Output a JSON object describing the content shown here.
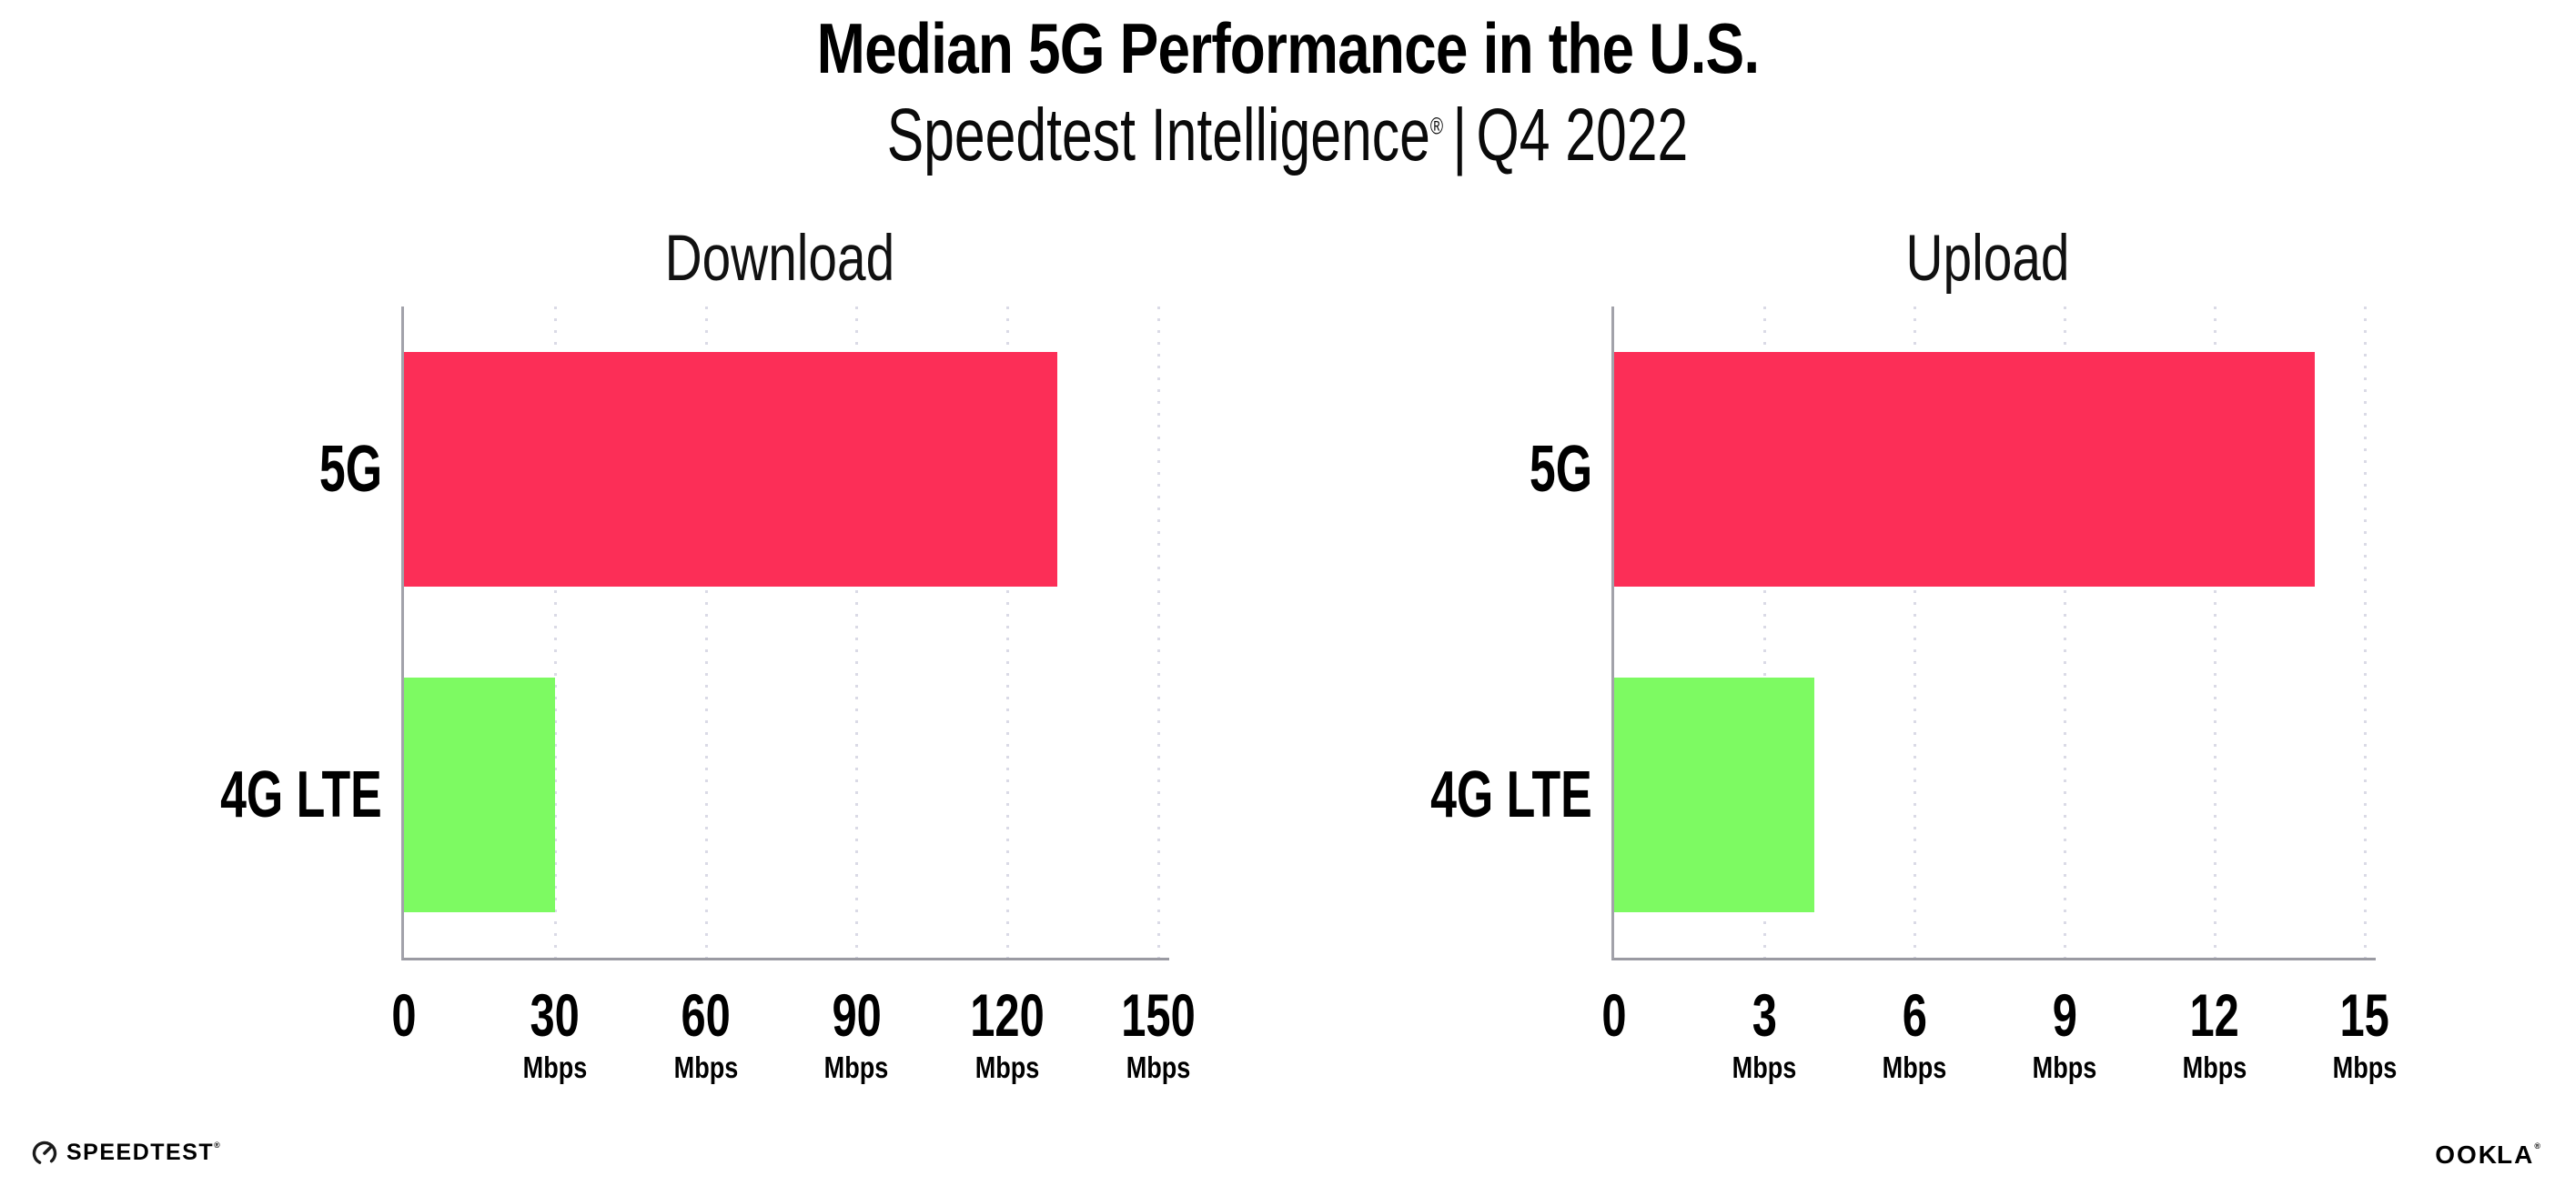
{
  "header": {
    "title": "Median 5G Performance in the U.S.",
    "subtitle": {
      "brand": "Speedtest Intelligence",
      "reg_mark": "®",
      "separator": "|",
      "period": "Q4 2022"
    }
  },
  "chart_data": [
    {
      "type": "bar",
      "orientation": "horizontal",
      "title": "Download",
      "categories": [
        "5G",
        "4G LTE"
      ],
      "values": [
        130,
        30
      ],
      "unit": "Mbps",
      "xlabel": "",
      "ylabel": "",
      "xlim": [
        0,
        150
      ],
      "xticks": [
        0,
        30,
        60,
        90,
        120,
        150
      ],
      "bar_colors": [
        "#fc2e57",
        "#7dfa62"
      ],
      "grid": "vertical-dotted",
      "legend": "none"
    },
    {
      "type": "bar",
      "orientation": "horizontal",
      "title": "Upload",
      "categories": [
        "5G",
        "4G LTE"
      ],
      "values": [
        14,
        4
      ],
      "unit": "Mbps",
      "xlabel": "",
      "ylabel": "",
      "xlim": [
        0,
        15
      ],
      "xticks": [
        0,
        3,
        6,
        9,
        12,
        15
      ],
      "bar_colors": [
        "#fc2e57",
        "#7dfa62"
      ],
      "grid": "vertical-dotted",
      "legend": "none"
    }
  ],
  "footer": {
    "speedtest_wordmark": "SPEEDTEST",
    "speedtest_reg": "®",
    "ookla_wordmark_left": "OO",
    "ookla_wordmark_k": "K",
    "ookla_wordmark_right": "LA",
    "ookla_reg": "®"
  },
  "style_colors": {
    "bar_5g": "#fc2e57",
    "bar_4g_lte": "#7dfa62",
    "axis_line": "#9a9aa2",
    "gridline": "#dadae6",
    "text": "#000000"
  }
}
